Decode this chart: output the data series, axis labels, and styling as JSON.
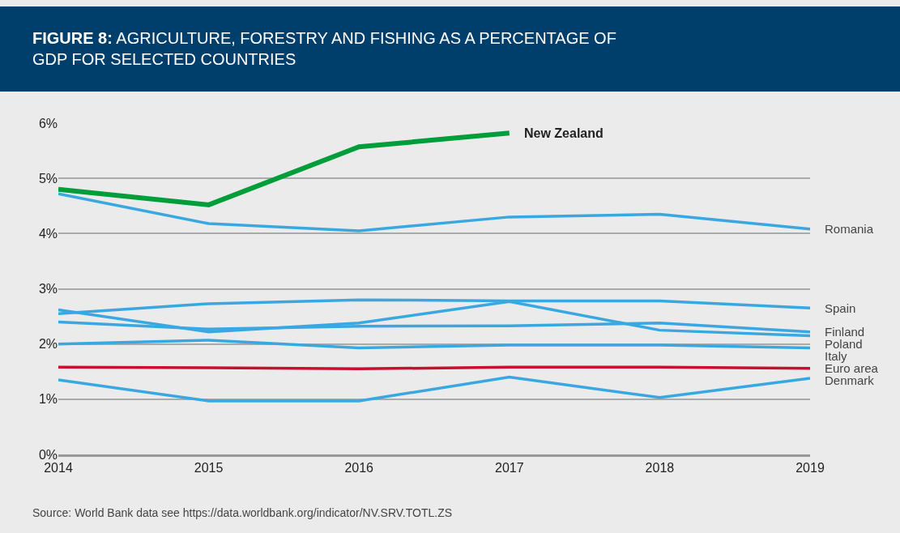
{
  "chart_data": {
    "type": "line",
    "title": "FIGURE 8: AGRICULTURE, FORESTRY AND FISHING AS A PERCENTAGE OF GDP FOR SELECTED COUNTRIES",
    "x": [
      2014,
      2015,
      2016,
      2017,
      2018,
      2019
    ],
    "series": [
      {
        "name": "New Zealand",
        "color": "#009e3a",
        "values": [
          4.8,
          4.52,
          5.57,
          5.82,
          null,
          null
        ]
      },
      {
        "name": "Romania",
        "color": "#3aa8e0",
        "values": [
          4.72,
          4.18,
          4.05,
          4.3,
          4.35,
          4.08
        ]
      },
      {
        "name": "Spain",
        "color": "#3aa8e0",
        "values": [
          2.55,
          2.73,
          2.8,
          2.78,
          2.78,
          2.65
        ]
      },
      {
        "name": "Finland",
        "color": "#3aa8e0",
        "values": [
          2.4,
          2.27,
          2.32,
          2.33,
          2.38,
          2.22
        ]
      },
      {
        "name": "Poland",
        "color": "#3aa8e0",
        "values": [
          2.62,
          2.22,
          2.38,
          2.77,
          2.25,
          2.15
        ]
      },
      {
        "name": "Italy",
        "color": "#3aa8e0",
        "values": [
          2.0,
          2.07,
          1.93,
          1.98,
          1.98,
          1.93
        ]
      },
      {
        "name": "Euro area",
        "color": "#c8102e",
        "values": [
          1.58,
          1.57,
          1.55,
          1.58,
          1.58,
          1.56
        ]
      },
      {
        "name": "Denmark",
        "color": "#3aa8e0",
        "values": [
          1.35,
          0.97,
          0.97,
          1.4,
          1.03,
          1.38
        ]
      }
    ],
    "xlim": [
      2014,
      2019
    ],
    "xticks": [
      2014,
      2015,
      2016,
      2017,
      2018,
      2019
    ],
    "ylim": [
      0,
      6
    ],
    "yticks": [
      {
        "value": 0,
        "label": "0%"
      },
      {
        "value": 1,
        "label": "1%"
      },
      {
        "value": 2,
        "label": "2%"
      },
      {
        "value": 3,
        "label": "3%"
      },
      {
        "value": 4,
        "label": "4%"
      },
      {
        "value": 5,
        "label": "5%"
      },
      {
        "value": 6,
        "label": "6%"
      }
    ],
    "grid": "y",
    "legend": false,
    "marker": "none",
    "line_style": "solid",
    "annotations": [
      "Source: World Bank data see https://data.worldbank.org/indicator/NV.SRV.TOTL.ZS"
    ]
  }
}
